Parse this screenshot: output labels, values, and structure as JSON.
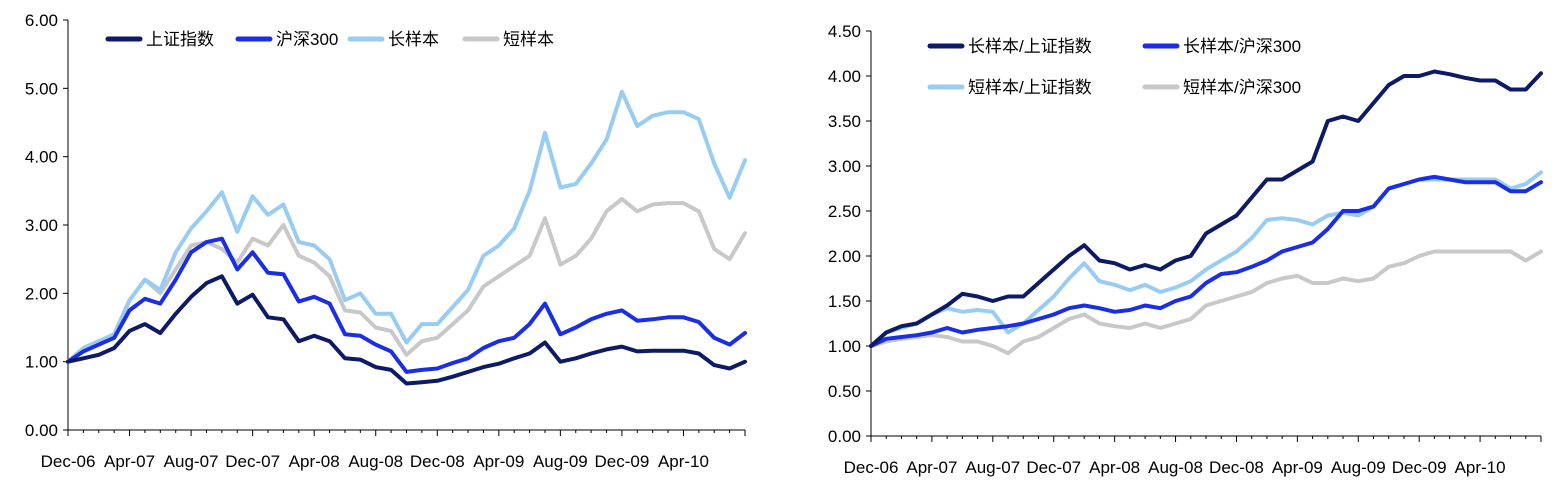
{
  "chart_data": [
    {
      "type": "line",
      "xlabel": "",
      "ylabel": "",
      "ylim": [
        0,
        6
      ],
      "yticks": [
        "0.00",
        "1.00",
        "2.00",
        "3.00",
        "4.00",
        "5.00",
        "6.00"
      ],
      "xticks": [
        "Dec-06",
        "Apr-07",
        "Aug-07",
        "Dec-07",
        "Apr-08",
        "Aug-08",
        "Dec-08",
        "Apr-09",
        "Aug-09",
        "Dec-09",
        "Apr-10"
      ],
      "x_months": [
        "2006-12",
        "2007-01",
        "2007-02",
        "2007-03",
        "2007-04",
        "2007-05",
        "2007-06",
        "2007-07",
        "2007-08",
        "2007-09",
        "2007-10",
        "2007-11",
        "2007-12",
        "2008-01",
        "2008-02",
        "2008-03",
        "2008-04",
        "2008-05",
        "2008-06",
        "2008-07",
        "2008-08",
        "2008-09",
        "2008-10",
        "2008-11",
        "2008-12",
        "2009-01",
        "2009-02",
        "2009-03",
        "2009-04",
        "2009-05",
        "2009-06",
        "2009-07",
        "2009-08",
        "2009-09",
        "2009-10",
        "2009-11",
        "2009-12",
        "2010-01",
        "2010-02",
        "2010-03",
        "2010-04",
        "2010-05",
        "2010-06",
        "2010-07",
        "2010-08"
      ],
      "legend_position": "top",
      "grid": false,
      "series": [
        {
          "name": "上证指数",
          "color": "#0d1a66",
          "values": [
            1.0,
            1.05,
            1.1,
            1.2,
            1.45,
            1.55,
            1.42,
            1.7,
            1.95,
            2.15,
            2.25,
            1.85,
            1.98,
            1.65,
            1.62,
            1.3,
            1.38,
            1.3,
            1.05,
            1.03,
            0.92,
            0.88,
            0.68,
            0.7,
            0.72,
            0.78,
            0.85,
            0.92,
            0.97,
            1.05,
            1.12,
            1.28,
            1.0,
            1.05,
            1.12,
            1.18,
            1.22,
            1.15,
            1.16,
            1.16,
            1.16,
            1.12,
            0.95,
            0.9,
            1.0
          ]
        },
        {
          "name": "沪深300",
          "color": "#1a2ee6",
          "values": [
            1.0,
            1.15,
            1.25,
            1.35,
            1.75,
            1.92,
            1.85,
            2.2,
            2.6,
            2.75,
            2.8,
            2.35,
            2.6,
            2.3,
            2.28,
            1.88,
            1.95,
            1.85,
            1.4,
            1.38,
            1.25,
            1.15,
            0.85,
            0.88,
            0.9,
            0.98,
            1.05,
            1.2,
            1.3,
            1.35,
            1.55,
            1.85,
            1.4,
            1.5,
            1.62,
            1.7,
            1.75,
            1.6,
            1.62,
            1.65,
            1.65,
            1.58,
            1.35,
            1.25,
            1.42
          ]
        },
        {
          "name": "长样本",
          "color": "#99ccf2",
          "values": [
            1.0,
            1.2,
            1.3,
            1.4,
            1.9,
            2.2,
            2.05,
            2.6,
            2.95,
            3.2,
            3.48,
            2.9,
            3.42,
            3.15,
            3.3,
            2.75,
            2.7,
            2.5,
            1.9,
            2.0,
            1.7,
            1.7,
            1.28,
            1.55,
            1.55,
            1.8,
            2.05,
            2.55,
            2.7,
            2.95,
            3.5,
            4.35,
            3.55,
            3.6,
            3.9,
            4.25,
            4.95,
            4.45,
            4.6,
            4.65,
            4.65,
            4.55,
            3.9,
            3.4,
            3.95
          ]
        },
        {
          "name": "短样本",
          "color": "#c8c8c8",
          "values": [
            1.0,
            1.2,
            1.3,
            1.4,
            1.9,
            2.2,
            2.0,
            2.35,
            2.7,
            2.75,
            2.65,
            2.45,
            2.8,
            2.7,
            3.0,
            2.55,
            2.45,
            2.25,
            1.75,
            1.72,
            1.5,
            1.45,
            1.1,
            1.3,
            1.35,
            1.55,
            1.75,
            2.1,
            2.25,
            2.4,
            2.55,
            3.1,
            2.42,
            2.55,
            2.8,
            3.2,
            3.38,
            3.2,
            3.3,
            3.32,
            3.32,
            3.2,
            2.65,
            2.5,
            2.88
          ]
        }
      ]
    },
    {
      "type": "line",
      "xlabel": "",
      "ylabel": "",
      "ylim": [
        0,
        4.5
      ],
      "yticks": [
        "0.00",
        "0.50",
        "1.00",
        "1.50",
        "2.00",
        "2.50",
        "3.00",
        "3.50",
        "4.00",
        "4.50"
      ],
      "xticks": [
        "Dec-06",
        "Apr-07",
        "Aug-07",
        "Dec-07",
        "Apr-08",
        "Aug-08",
        "Dec-08",
        "Apr-09",
        "Aug-09",
        "Dec-09",
        "Apr-10"
      ],
      "x_months": [
        "2006-12",
        "2007-01",
        "2007-02",
        "2007-03",
        "2007-04",
        "2007-05",
        "2007-06",
        "2007-07",
        "2007-08",
        "2007-09",
        "2007-10",
        "2007-11",
        "2007-12",
        "2008-01",
        "2008-02",
        "2008-03",
        "2008-04",
        "2008-05",
        "2008-06",
        "2008-07",
        "2008-08",
        "2008-09",
        "2008-10",
        "2008-11",
        "2008-12",
        "2009-01",
        "2009-02",
        "2009-03",
        "2009-04",
        "2009-05",
        "2009-06",
        "2009-07",
        "2009-08",
        "2009-09",
        "2009-10",
        "2009-11",
        "2009-12",
        "2010-01",
        "2010-02",
        "2010-03",
        "2010-04",
        "2010-05",
        "2010-06",
        "2010-07",
        "2010-08"
      ],
      "legend_position": "top",
      "grid": false,
      "series": [
        {
          "name": "长样本/上证指数",
          "color": "#0d1a66",
          "values": [
            1.0,
            1.15,
            1.22,
            1.25,
            1.35,
            1.45,
            1.58,
            1.55,
            1.5,
            1.55,
            1.55,
            1.7,
            1.85,
            2.0,
            2.12,
            1.95,
            1.92,
            1.85,
            1.9,
            1.85,
            1.95,
            2.0,
            2.25,
            2.35,
            2.45,
            2.65,
            2.85,
            2.85,
            2.95,
            3.05,
            3.5,
            3.55,
            3.5,
            3.7,
            3.9,
            4.0,
            4.0,
            4.05,
            4.02,
            3.98,
            3.95,
            3.95,
            3.85,
            3.85,
            4.03
          ]
        },
        {
          "name": "长样本/沪深300",
          "color": "#1a2ee6",
          "values": [
            1.0,
            1.08,
            1.1,
            1.12,
            1.15,
            1.2,
            1.15,
            1.18,
            1.2,
            1.22,
            1.25,
            1.3,
            1.35,
            1.42,
            1.45,
            1.42,
            1.38,
            1.4,
            1.45,
            1.42,
            1.5,
            1.55,
            1.7,
            1.8,
            1.82,
            1.88,
            1.95,
            2.05,
            2.1,
            2.15,
            2.3,
            2.5,
            2.5,
            2.55,
            2.75,
            2.8,
            2.85,
            2.88,
            2.85,
            2.82,
            2.82,
            2.82,
            2.72,
            2.72,
            2.82
          ]
        },
        {
          "name": "短样本/上证指数",
          "color": "#99ccf2",
          "values": [
            1.0,
            1.15,
            1.2,
            1.25,
            1.35,
            1.42,
            1.38,
            1.4,
            1.38,
            1.15,
            1.25,
            1.4,
            1.55,
            1.75,
            1.92,
            1.72,
            1.68,
            1.62,
            1.68,
            1.6,
            1.65,
            1.72,
            1.85,
            1.95,
            2.05,
            2.2,
            2.4,
            2.42,
            2.4,
            2.35,
            2.45,
            2.48,
            2.45,
            2.55,
            2.75,
            2.8,
            2.85,
            2.85,
            2.85,
            2.85,
            2.85,
            2.85,
            2.75,
            2.8,
            2.93
          ]
        },
        {
          "name": "短样本/沪深300",
          "color": "#c8c8c8",
          "values": [
            1.0,
            1.05,
            1.08,
            1.1,
            1.12,
            1.1,
            1.05,
            1.05,
            1.0,
            0.92,
            1.05,
            1.1,
            1.2,
            1.3,
            1.35,
            1.25,
            1.22,
            1.2,
            1.25,
            1.2,
            1.25,
            1.3,
            1.45,
            1.5,
            1.55,
            1.6,
            1.7,
            1.75,
            1.78,
            1.7,
            1.7,
            1.75,
            1.72,
            1.75,
            1.88,
            1.92,
            2.0,
            2.05,
            2.05,
            2.05,
            2.05,
            2.05,
            2.05,
            1.95,
            2.05
          ]
        }
      ]
    }
  ]
}
